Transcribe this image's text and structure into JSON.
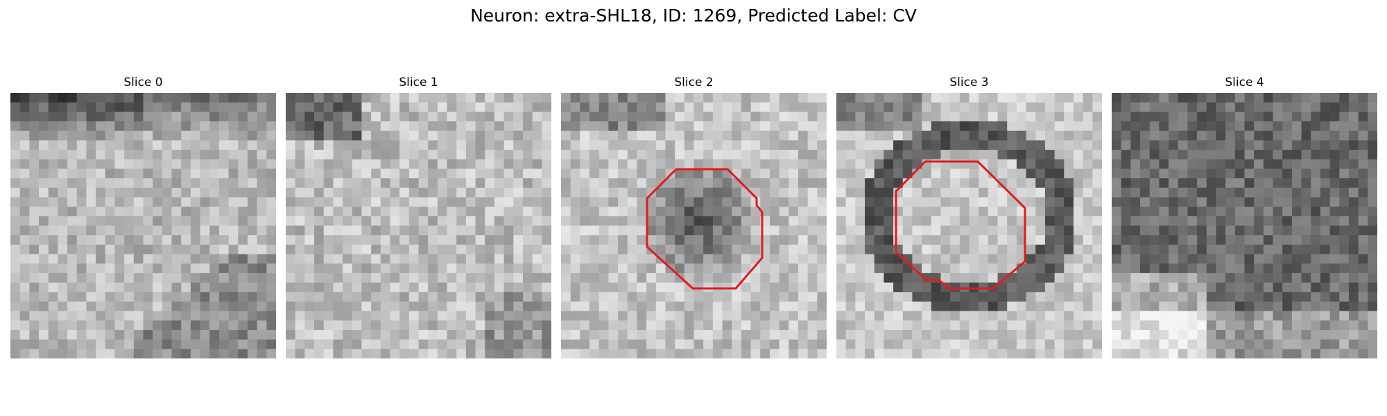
{
  "title": "Neuron: extra-SHL18, ID: 1269, Predicted Label: CV",
  "panels": [
    {
      "label": "Slice 0",
      "texture": "bright-top-dark",
      "contour": false
    },
    {
      "label": "Slice 1",
      "texture": "bright-mottled",
      "contour": false
    },
    {
      "label": "Slice 2",
      "texture": "dark-center-blob",
      "contour": true
    },
    {
      "label": "Slice 3",
      "texture": "bright-center-dark-ring",
      "contour": true
    },
    {
      "label": "Slice 4",
      "texture": "dark-grainy",
      "contour": false
    }
  ],
  "colors": {
    "contour": "#e31a1c",
    "background": "#ffffff"
  }
}
